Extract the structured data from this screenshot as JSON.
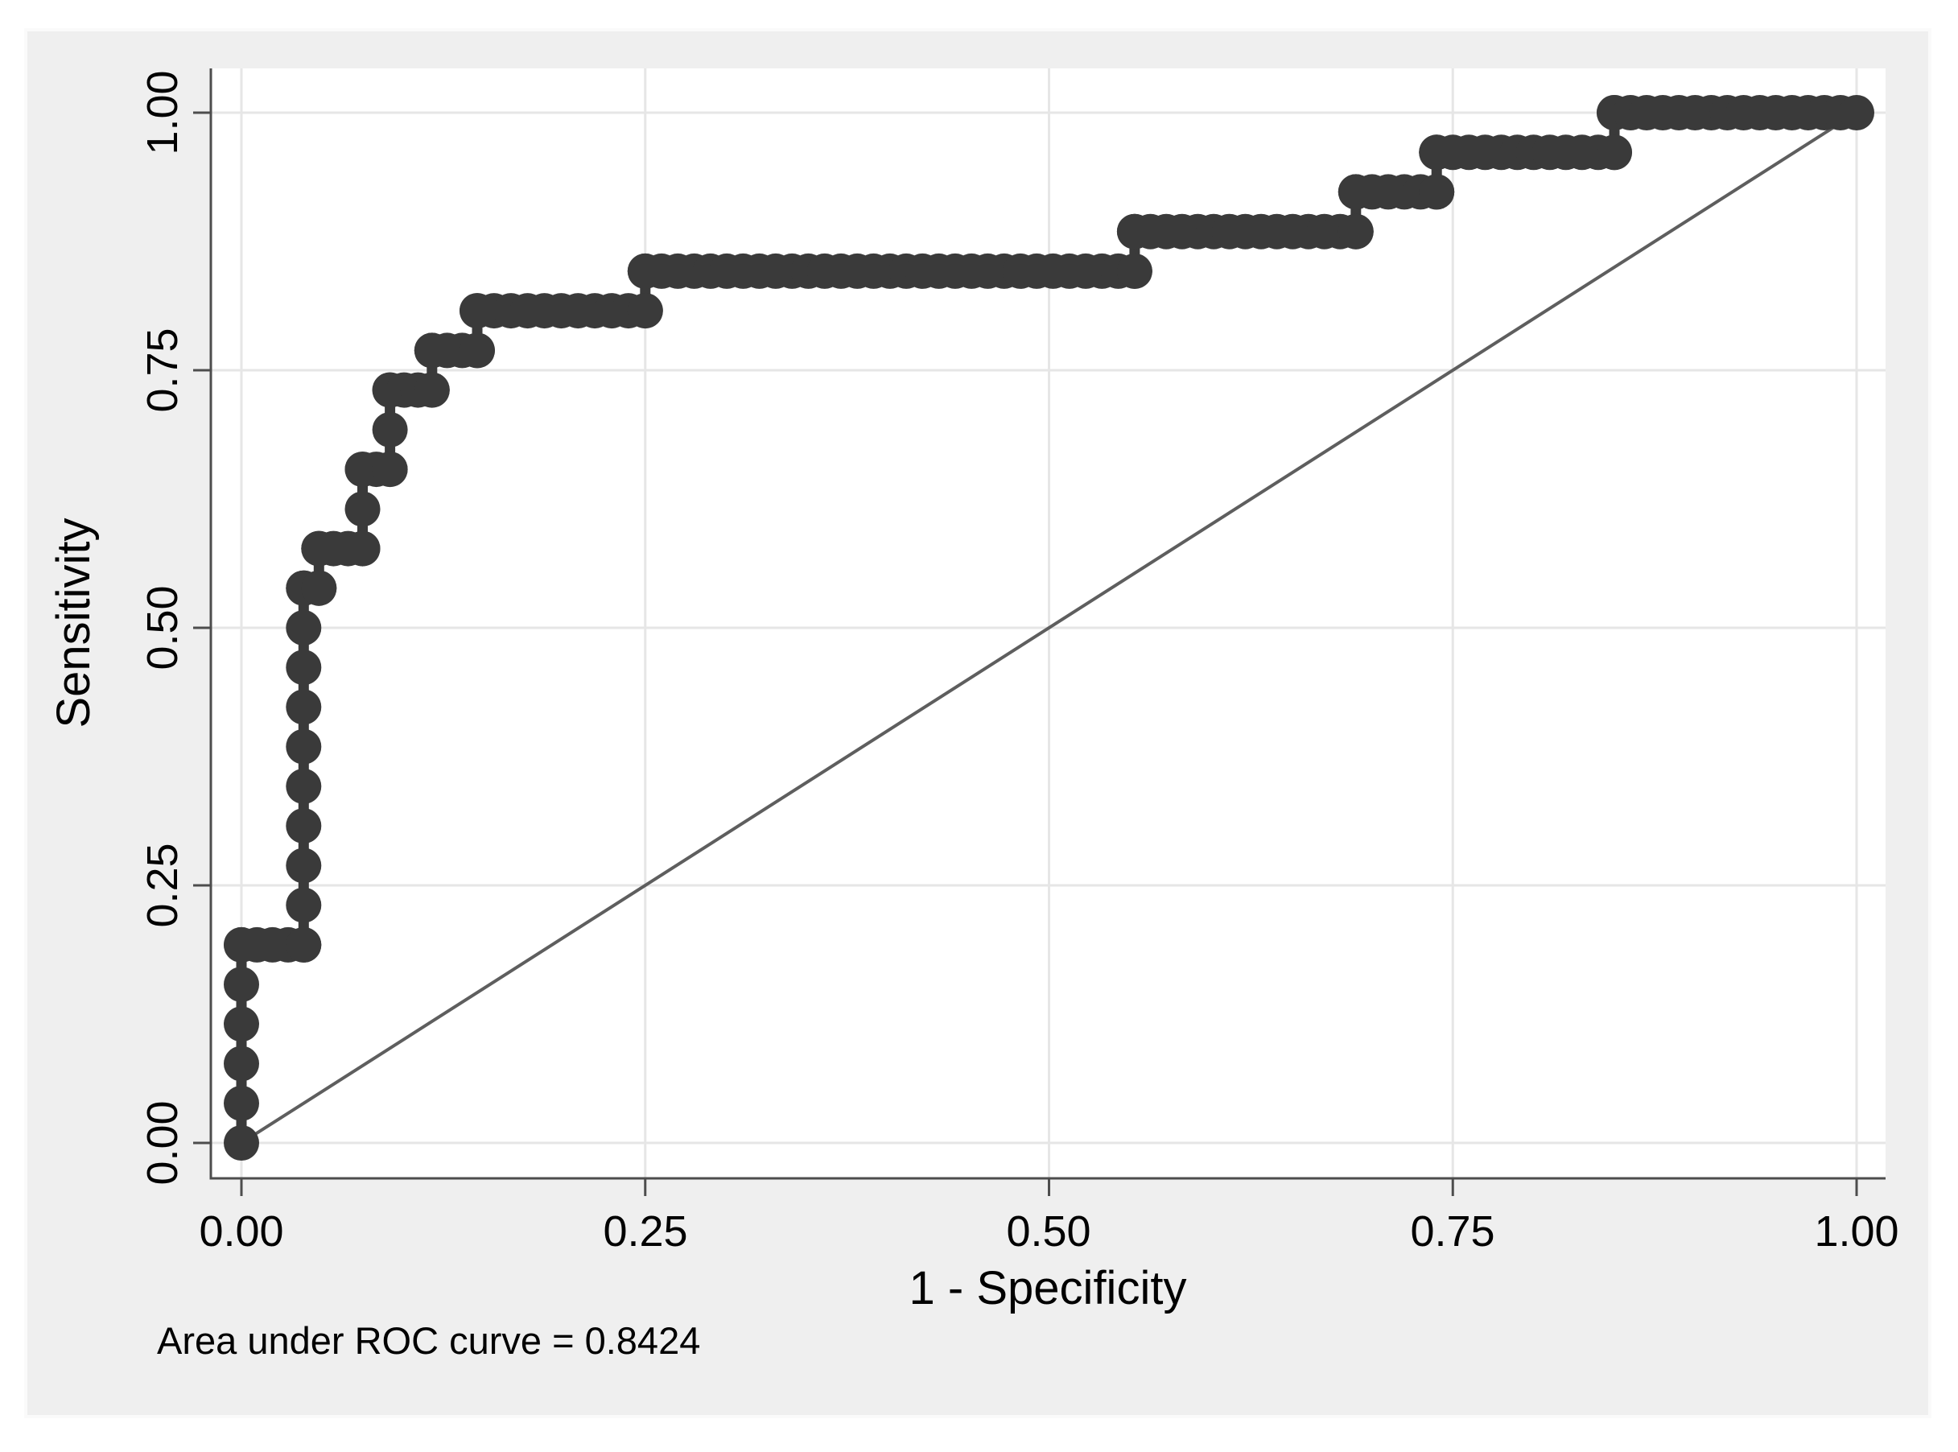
{
  "chart_data": {
    "type": "line",
    "subtype": "roc-step-curve",
    "title": "",
    "xlabel": "1 - Specificity",
    "ylabel": "Sensitivity",
    "caption": "Area under ROC curve = 0.8424",
    "auc": 0.8424,
    "xlim": [
      0,
      1
    ],
    "ylim": [
      0,
      1
    ],
    "grid": true,
    "legend": null,
    "x_ticks": [
      0,
      0.25,
      0.5,
      0.75,
      1.0
    ],
    "x_tick_labels": [
      "0.00",
      "0.25",
      "0.50",
      "0.75",
      "1.00"
    ],
    "y_ticks": [
      0,
      0.25,
      0.5,
      0.75,
      1.0
    ],
    "y_tick_labels": [
      "0.00",
      "0.25",
      "0.50",
      "0.75",
      "1.00"
    ],
    "sens_step": 0.038462,
    "roc_curve_vertices": [
      [
        0.0,
        0.0
      ],
      [
        0.0,
        0.1923
      ],
      [
        0.0385,
        0.1923
      ],
      [
        0.0385,
        0.5385
      ],
      [
        0.048,
        0.5385
      ],
      [
        0.048,
        0.5769
      ],
      [
        0.075,
        0.5769
      ],
      [
        0.075,
        0.6538
      ],
      [
        0.092,
        0.6538
      ],
      [
        0.092,
        0.7308
      ],
      [
        0.118,
        0.7308
      ],
      [
        0.118,
        0.7692
      ],
      [
        0.146,
        0.7692
      ],
      [
        0.146,
        0.8077
      ],
      [
        0.25,
        0.8077
      ],
      [
        0.25,
        0.8462
      ],
      [
        0.553,
        0.8462
      ],
      [
        0.553,
        0.8846
      ],
      [
        0.69,
        0.8846
      ],
      [
        0.69,
        0.9231
      ],
      [
        0.74,
        0.9231
      ],
      [
        0.74,
        0.9615
      ],
      [
        0.85,
        0.9615
      ],
      [
        0.85,
        1.0
      ],
      [
        1.0,
        1.0
      ]
    ],
    "reference_line": {
      "from": [
        0,
        0
      ],
      "to": [
        1,
        1
      ]
    }
  },
  "colors": {
    "curve": "#3a3a3a",
    "reference": "#5e5e5e",
    "grid": "#e6e6e6",
    "axis": "#4d4d4d",
    "panel_bg": "#efefef",
    "plot_bg": "#ffffff",
    "text": "#000000"
  }
}
